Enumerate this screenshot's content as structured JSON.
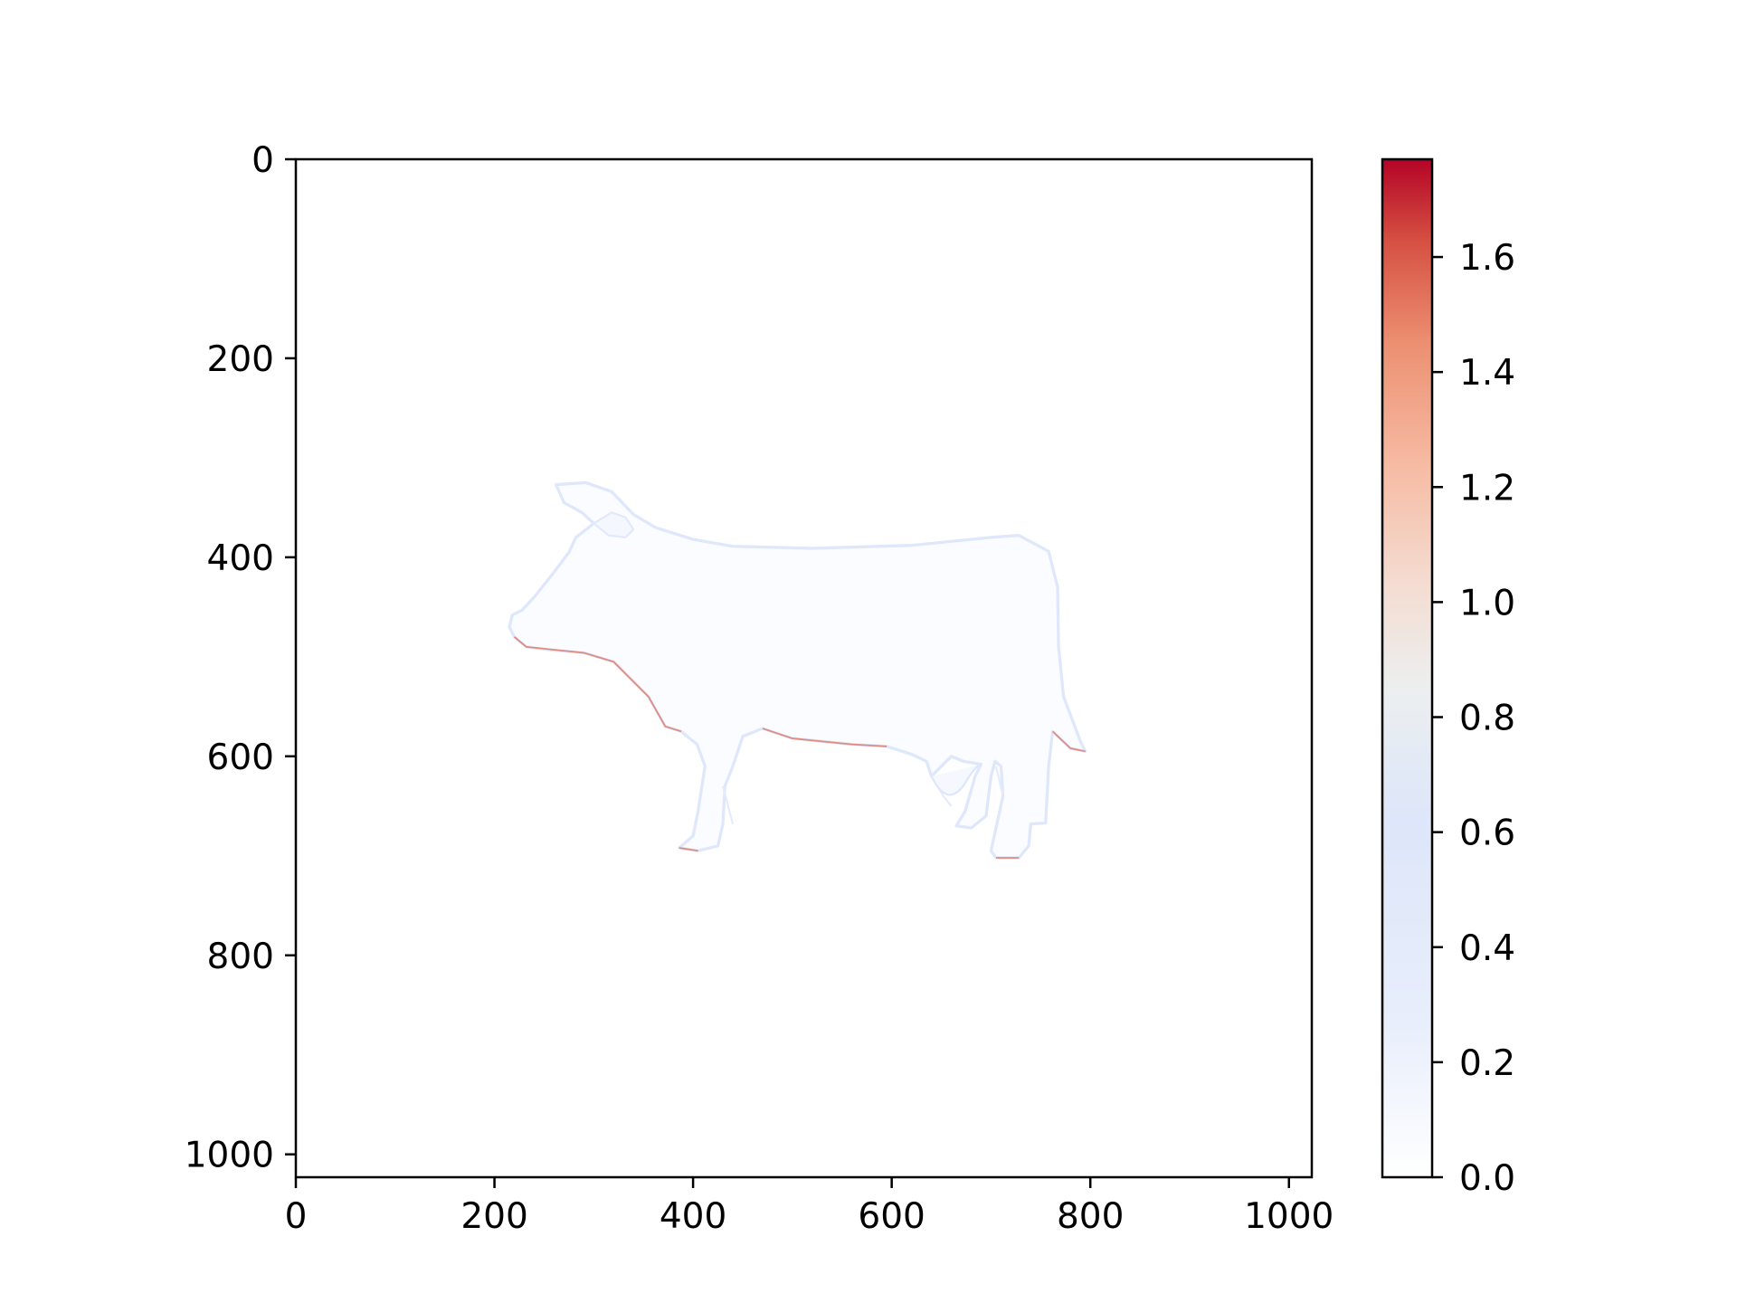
{
  "chart_data": {
    "type": "heatmap",
    "title": "",
    "xlabel": "",
    "ylabel": "",
    "image_extent": {
      "x": [
        0,
        1023
      ],
      "y": [
        0,
        1023
      ]
    },
    "y_axis_inverted": true,
    "x_ticks": [
      0,
      200,
      400,
      600,
      800,
      1000
    ],
    "y_ticks": [
      0,
      200,
      400,
      600,
      800,
      1000
    ],
    "content": "cow-silhouette",
    "value_summary": {
      "background": 0.0,
      "silhouette_interior_approx": 0.05,
      "edge_highlight_approx": 0.5,
      "boundary_max_approx": 1.77
    },
    "colorbar": {
      "colormap": "coolwarm",
      "vmin": 0.0,
      "vmax": 1.77,
      "ticks": [
        0.0,
        0.2,
        0.4,
        0.6,
        0.8,
        1.0,
        1.2,
        1.4,
        1.6
      ],
      "tick_labels": [
        "0.0",
        "0.2",
        "0.4",
        "0.6",
        "0.8",
        "1.0",
        "1.2",
        "1.4",
        "1.6"
      ]
    },
    "grid": false,
    "legend": "none",
    "colors": {
      "low": "#ffffff",
      "mid": "#dde7f9",
      "high": "#b40426",
      "axes": "#000000"
    }
  }
}
